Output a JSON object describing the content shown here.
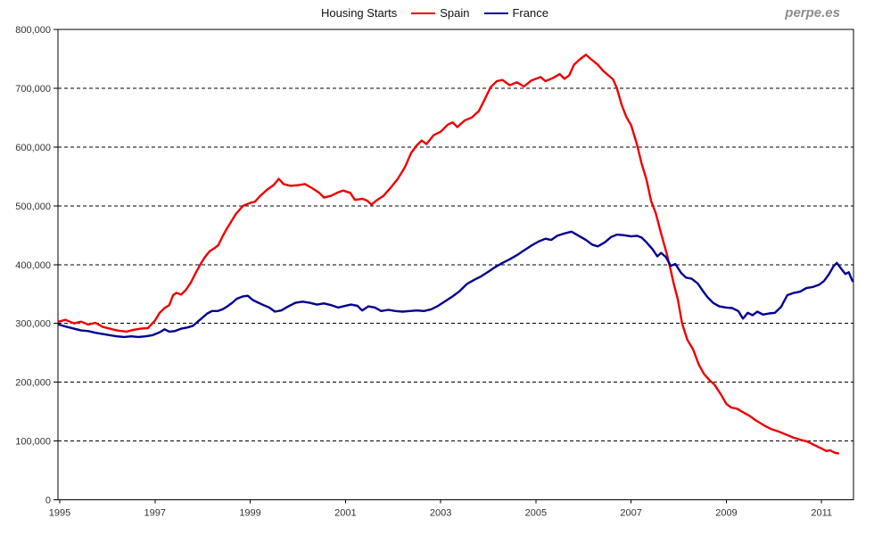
{
  "page": {
    "watermark": "perpe.es"
  },
  "chart_data": {
    "type": "line",
    "title": "Housing Starts",
    "xlabel": "",
    "ylabel": "",
    "grid": "horizontal-dashed",
    "legend_position": "top-center-inline-with-title",
    "x_axis": {
      "min": 1995,
      "max": 2011.67,
      "ticks": [
        {
          "value": 1995,
          "label": "1995"
        },
        {
          "value": 1997,
          "label": "1997"
        },
        {
          "value": 1999,
          "label": "1999"
        },
        {
          "value": 2001,
          "label": "2001"
        },
        {
          "value": 2003,
          "label": "2003"
        },
        {
          "value": 2005,
          "label": "2005"
        },
        {
          "value": 2007,
          "label": "2007"
        },
        {
          "value": 2009,
          "label": "2009"
        },
        {
          "value": 2011,
          "label": "2011"
        }
      ]
    },
    "y_axis": {
      "min": 0,
      "max": 800000,
      "ticks": [
        {
          "value": 0,
          "label": "0"
        },
        {
          "value": 100000,
          "label": "100,000"
        },
        {
          "value": 200000,
          "label": "200,000"
        },
        {
          "value": 300000,
          "label": "300,000"
        },
        {
          "value": 400000,
          "label": "400,000"
        },
        {
          "value": 500000,
          "label": "500,000"
        },
        {
          "value": 600000,
          "label": "600,000"
        },
        {
          "value": 700000,
          "label": "700,000"
        },
        {
          "value": 800000,
          "label": "800,000"
        }
      ]
    },
    "legend": [
      {
        "label": "Spain",
        "color": "#ee0000"
      },
      {
        "label": "France",
        "color": "#000090"
      }
    ],
    "series": [
      {
        "name": "Spain",
        "color": "#ee0000",
        "points": [
          [
            1994.98,
            303000
          ],
          [
            1995.12,
            306000
          ],
          [
            1995.3,
            300000
          ],
          [
            1995.45,
            303000
          ],
          [
            1995.6,
            298000
          ],
          [
            1995.75,
            301000
          ],
          [
            1995.9,
            294000
          ],
          [
            1996.05,
            291000
          ],
          [
            1996.2,
            288000
          ],
          [
            1996.4,
            286000
          ],
          [
            1996.55,
            289000
          ],
          [
            1996.7,
            291000
          ],
          [
            1996.85,
            292000
          ],
          [
            1997.0,
            305000
          ],
          [
            1997.1,
            318000
          ],
          [
            1997.2,
            326000
          ],
          [
            1997.3,
            331000
          ],
          [
            1997.38,
            348000
          ],
          [
            1997.45,
            352000
          ],
          [
            1997.55,
            349000
          ],
          [
            1997.65,
            357000
          ],
          [
            1997.75,
            369000
          ],
          [
            1997.85,
            385000
          ],
          [
            1997.95,
            400000
          ],
          [
            1998.05,
            413000
          ],
          [
            1998.15,
            423000
          ],
          [
            1998.25,
            428000
          ],
          [
            1998.33,
            433000
          ],
          [
            1998.42,
            448000
          ],
          [
            1998.5,
            460000
          ],
          [
            1998.6,
            473000
          ],
          [
            1998.7,
            486000
          ],
          [
            1998.85,
            500000
          ],
          [
            1999.0,
            505000
          ],
          [
            1999.1,
            507000
          ],
          [
            1999.2,
            516000
          ],
          [
            1999.35,
            527000
          ],
          [
            1999.5,
            536000
          ],
          [
            1999.6,
            546000
          ],
          [
            1999.7,
            537000
          ],
          [
            1999.85,
            534000
          ],
          [
            2000.0,
            535000
          ],
          [
            2000.15,
            537000
          ],
          [
            2000.3,
            530000
          ],
          [
            2000.45,
            522000
          ],
          [
            2000.55,
            514000
          ],
          [
            2000.7,
            517000
          ],
          [
            2000.85,
            523000
          ],
          [
            2000.95,
            526000
          ],
          [
            2001.1,
            522000
          ],
          [
            2001.2,
            510000
          ],
          [
            2001.35,
            512000
          ],
          [
            2001.45,
            509000
          ],
          [
            2001.55,
            502000
          ],
          [
            2001.65,
            509000
          ],
          [
            2001.8,
            517000
          ],
          [
            2001.95,
            531000
          ],
          [
            2002.1,
            546000
          ],
          [
            2002.25,
            566000
          ],
          [
            2002.38,
            590000
          ],
          [
            2002.5,
            603000
          ],
          [
            2002.6,
            611000
          ],
          [
            2002.7,
            605000
          ],
          [
            2002.85,
            620000
          ],
          [
            2003.0,
            626000
          ],
          [
            2003.15,
            638000
          ],
          [
            2003.25,
            642000
          ],
          [
            2003.35,
            634000
          ],
          [
            2003.5,
            645000
          ],
          [
            2003.65,
            650000
          ],
          [
            2003.8,
            661000
          ],
          [
            2003.92,
            680000
          ],
          [
            2004.05,
            702000
          ],
          [
            2004.18,
            712000
          ],
          [
            2004.3,
            714000
          ],
          [
            2004.45,
            705000
          ],
          [
            2004.6,
            710000
          ],
          [
            2004.75,
            703000
          ],
          [
            2004.9,
            713000
          ],
          [
            2005.0,
            716000
          ],
          [
            2005.1,
            719000
          ],
          [
            2005.2,
            712000
          ],
          [
            2005.35,
            717000
          ],
          [
            2005.5,
            724000
          ],
          [
            2005.6,
            716000
          ],
          [
            2005.7,
            722000
          ],
          [
            2005.8,
            740000
          ],
          [
            2005.92,
            749000
          ],
          [
            2006.05,
            757000
          ],
          [
            2006.15,
            750000
          ],
          [
            2006.3,
            740000
          ],
          [
            2006.42,
            729000
          ],
          [
            2006.52,
            722000
          ],
          [
            2006.62,
            715000
          ],
          [
            2006.7,
            700000
          ],
          [
            2006.8,
            672000
          ],
          [
            2006.9,
            651000
          ],
          [
            2007.0,
            637000
          ],
          [
            2007.12,
            605000
          ],
          [
            2007.22,
            572000
          ],
          [
            2007.32,
            545000
          ],
          [
            2007.42,
            508000
          ],
          [
            2007.52,
            487000
          ],
          [
            2007.6,
            462000
          ],
          [
            2007.68,
            438000
          ],
          [
            2007.75,
            418000
          ],
          [
            2007.82,
            394000
          ],
          [
            2007.9,
            366000
          ],
          [
            2007.98,
            341000
          ],
          [
            2008.07,
            300000
          ],
          [
            2008.18,
            272000
          ],
          [
            2008.3,
            256000
          ],
          [
            2008.42,
            230000
          ],
          [
            2008.53,
            214000
          ],
          [
            2008.65,
            203000
          ],
          [
            2008.75,
            196000
          ],
          [
            2008.88,
            180000
          ],
          [
            2009.0,
            163000
          ],
          [
            2009.1,
            157000
          ],
          [
            2009.22,
            155000
          ],
          [
            2009.35,
            149000
          ],
          [
            2009.48,
            143000
          ],
          [
            2009.62,
            135000
          ],
          [
            2009.8,
            126000
          ],
          [
            2009.95,
            120000
          ],
          [
            2010.1,
            116000
          ],
          [
            2010.25,
            111000
          ],
          [
            2010.4,
            106000
          ],
          [
            2010.55,
            102000
          ],
          [
            2010.7,
            99000
          ],
          [
            2010.85,
            93000
          ],
          [
            2011.0,
            87000
          ],
          [
            2011.1,
            83000
          ],
          [
            2011.18,
            84000
          ],
          [
            2011.28,
            80000
          ],
          [
            2011.35,
            79000
          ]
        ]
      },
      {
        "name": "France",
        "color": "#000090",
        "points": [
          [
            1994.98,
            298000
          ],
          [
            1995.15,
            294000
          ],
          [
            1995.3,
            291000
          ],
          [
            1995.45,
            288000
          ],
          [
            1995.6,
            287000
          ],
          [
            1995.75,
            284000
          ],
          [
            1995.9,
            282000
          ],
          [
            1996.05,
            280000
          ],
          [
            1996.2,
            278000
          ],
          [
            1996.35,
            277000
          ],
          [
            1996.5,
            278000
          ],
          [
            1996.65,
            277000
          ],
          [
            1996.8,
            278000
          ],
          [
            1996.95,
            280000
          ],
          [
            1997.1,
            285000
          ],
          [
            1997.2,
            290000
          ],
          [
            1997.3,
            286000
          ],
          [
            1997.42,
            287000
          ],
          [
            1997.55,
            291000
          ],
          [
            1997.68,
            293000
          ],
          [
            1997.8,
            296000
          ],
          [
            1997.9,
            303000
          ],
          [
            1998.0,
            310000
          ],
          [
            1998.1,
            317000
          ],
          [
            1998.2,
            321000
          ],
          [
            1998.32,
            321000
          ],
          [
            1998.42,
            324000
          ],
          [
            1998.52,
            329000
          ],
          [
            1998.62,
            335000
          ],
          [
            1998.72,
            342000
          ],
          [
            1998.85,
            346000
          ],
          [
            1998.95,
            347000
          ],
          [
            1999.05,
            340000
          ],
          [
            1999.15,
            336000
          ],
          [
            1999.28,
            331000
          ],
          [
            1999.4,
            327000
          ],
          [
            1999.52,
            320000
          ],
          [
            1999.65,
            322000
          ],
          [
            1999.8,
            329000
          ],
          [
            1999.95,
            335000
          ],
          [
            2000.1,
            337000
          ],
          [
            2000.25,
            335000
          ],
          [
            2000.4,
            332000
          ],
          [
            2000.55,
            334000
          ],
          [
            2000.7,
            331000
          ],
          [
            2000.85,
            327000
          ],
          [
            2001.0,
            330000
          ],
          [
            2001.12,
            332000
          ],
          [
            2001.25,
            330000
          ],
          [
            2001.35,
            322000
          ],
          [
            2001.48,
            329000
          ],
          [
            2001.62,
            327000
          ],
          [
            2001.75,
            321000
          ],
          [
            2001.9,
            323000
          ],
          [
            2002.05,
            321000
          ],
          [
            2002.2,
            320000
          ],
          [
            2002.35,
            321000
          ],
          [
            2002.5,
            322000
          ],
          [
            2002.65,
            321000
          ],
          [
            2002.8,
            324000
          ],
          [
            2002.95,
            330000
          ],
          [
            2003.1,
            338000
          ],
          [
            2003.25,
            346000
          ],
          [
            2003.4,
            355000
          ],
          [
            2003.55,
            367000
          ],
          [
            2003.7,
            374000
          ],
          [
            2003.85,
            380000
          ],
          [
            2004.0,
            388000
          ],
          [
            2004.15,
            396000
          ],
          [
            2004.3,
            403000
          ],
          [
            2004.45,
            409000
          ],
          [
            2004.6,
            416000
          ],
          [
            2004.75,
            424000
          ],
          [
            2004.9,
            432000
          ],
          [
            2005.05,
            439000
          ],
          [
            2005.2,
            444000
          ],
          [
            2005.32,
            442000
          ],
          [
            2005.45,
            449000
          ],
          [
            2005.6,
            453000
          ],
          [
            2005.75,
            456000
          ],
          [
            2005.9,
            449000
          ],
          [
            2006.05,
            442000
          ],
          [
            2006.18,
            434000
          ],
          [
            2006.3,
            431000
          ],
          [
            2006.45,
            438000
          ],
          [
            2006.58,
            447000
          ],
          [
            2006.7,
            451000
          ],
          [
            2006.85,
            450000
          ],
          [
            2007.0,
            448000
          ],
          [
            2007.12,
            449000
          ],
          [
            2007.22,
            446000
          ],
          [
            2007.32,
            438000
          ],
          [
            2007.45,
            426000
          ],
          [
            2007.55,
            414000
          ],
          [
            2007.63,
            420000
          ],
          [
            2007.73,
            413000
          ],
          [
            2007.83,
            398000
          ],
          [
            2007.93,
            401000
          ],
          [
            2008.05,
            386000
          ],
          [
            2008.15,
            378000
          ],
          [
            2008.27,
            376000
          ],
          [
            2008.4,
            368000
          ],
          [
            2008.5,
            356000
          ],
          [
            2008.6,
            345000
          ],
          [
            2008.72,
            335000
          ],
          [
            2008.85,
            329000
          ],
          [
            2009.0,
            327000
          ],
          [
            2009.12,
            326000
          ],
          [
            2009.25,
            321000
          ],
          [
            2009.35,
            308000
          ],
          [
            2009.45,
            318000
          ],
          [
            2009.55,
            314000
          ],
          [
            2009.65,
            320000
          ],
          [
            2009.77,
            315000
          ],
          [
            2009.9,
            317000
          ],
          [
            2010.02,
            318000
          ],
          [
            2010.15,
            328000
          ],
          [
            2010.28,
            348000
          ],
          [
            2010.42,
            352000
          ],
          [
            2010.55,
            354000
          ],
          [
            2010.68,
            360000
          ],
          [
            2010.82,
            362000
          ],
          [
            2010.95,
            366000
          ],
          [
            2011.05,
            372000
          ],
          [
            2011.15,
            383000
          ],
          [
            2011.25,
            397000
          ],
          [
            2011.32,
            403000
          ],
          [
            2011.42,
            392000
          ],
          [
            2011.5,
            384000
          ],
          [
            2011.57,
            387000
          ],
          [
            2011.65,
            372000
          ]
        ]
      }
    ]
  }
}
